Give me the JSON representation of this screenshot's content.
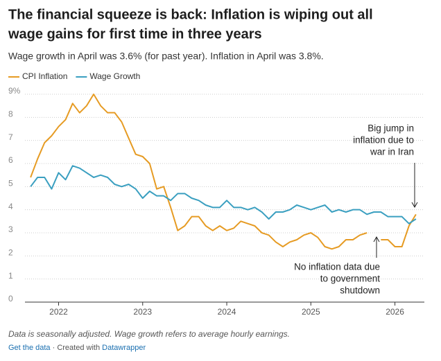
{
  "chart_data": {
    "type": "line",
    "title": [
      "The financial squeeze is back: Inflation is wiping out all",
      "wage gains for first time in three years"
    ],
    "subtitle": "Wage growth in April was 3.6% (for past year). Inflation in April was 3.8%.",
    "x": [
      2021.667,
      2021.75,
      2021.833,
      2021.917,
      2022,
      2022.083,
      2022.167,
      2022.25,
      2022.333,
      2022.417,
      2022.5,
      2022.583,
      2022.667,
      2022.75,
      2022.833,
      2022.917,
      2023,
      2023.083,
      2023.167,
      2023.25,
      2023.333,
      2023.417,
      2023.5,
      2023.583,
      2023.667,
      2023.75,
      2023.833,
      2023.917,
      2024,
      2024.083,
      2024.167,
      2024.25,
      2024.333,
      2024.417,
      2024.5,
      2024.583,
      2024.667,
      2024.75,
      2024.833,
      2024.917,
      2025,
      2025.083,
      2025.167,
      2025.25,
      2025.333,
      2025.417,
      2025.5,
      2025.583,
      2025.667,
      2025.75,
      2025.833,
      2025.917,
      2026,
      2026.083,
      2026.167,
      2026.25
    ],
    "series": [
      {
        "name": "CPI Inflation",
        "color": "#e69b23",
        "values": [
          5.4,
          6.2,
          6.9,
          7.2,
          7.6,
          7.9,
          8.6,
          8.2,
          8.5,
          9.0,
          8.5,
          8.2,
          8.2,
          7.8,
          7.1,
          6.4,
          6.3,
          6.0,
          4.9,
          5.0,
          4.1,
          3.1,
          3.3,
          3.7,
          3.7,
          3.3,
          3.1,
          3.3,
          3.1,
          3.2,
          3.5,
          3.4,
          3.3,
          3.0,
          2.9,
          2.6,
          2.4,
          2.6,
          2.7,
          2.9,
          3.0,
          2.8,
          2.4,
          2.3,
          2.4,
          2.7,
          2.7,
          2.9,
          3.0,
          null,
          2.7,
          2.7,
          2.4,
          2.4,
          3.3,
          3.8
        ]
      },
      {
        "name": "Wage Growth",
        "color": "#3a9fc0",
        "values": [
          5.0,
          5.4,
          5.4,
          4.9,
          5.6,
          5.3,
          5.9,
          5.8,
          5.6,
          5.4,
          5.5,
          5.4,
          5.1,
          5.0,
          5.1,
          4.9,
          4.5,
          4.8,
          4.6,
          4.6,
          4.4,
          4.7,
          4.7,
          4.5,
          4.4,
          4.2,
          4.1,
          4.1,
          4.4,
          4.1,
          4.1,
          4.0,
          4.1,
          3.9,
          3.6,
          3.9,
          3.9,
          4.0,
          4.2,
          4.1,
          4.0,
          4.1,
          4.2,
          3.9,
          4.0,
          3.9,
          4.0,
          4.0,
          3.8,
          3.9,
          3.9,
          3.7,
          3.7,
          3.7,
          3.4,
          3.6
        ]
      }
    ],
    "xlim": [
      2021.6,
      2026.35
    ],
    "xticks": [
      2022,
      2023,
      2024,
      2025,
      2026
    ],
    "ylim": [
      0,
      9
    ],
    "yticks": [
      0,
      1,
      2,
      3,
      4,
      5,
      6,
      7,
      8,
      {
        "value": 9,
        "label": "9%"
      }
    ],
    "grid": true,
    "annotations": [
      {
        "lines": [
          "Big jump in",
          "inflation due to",
          "war in Iran"
        ]
      },
      {
        "lines": [
          "No inflation data due",
          "to government",
          "shutdown"
        ]
      }
    ],
    "notes": "Data is seasonally adjusted. Wage growth refers to average hourly earnings.",
    "footer": {
      "link": "Get the data",
      "separator": " · Created with ",
      "credit": "Datawrapper"
    }
  }
}
